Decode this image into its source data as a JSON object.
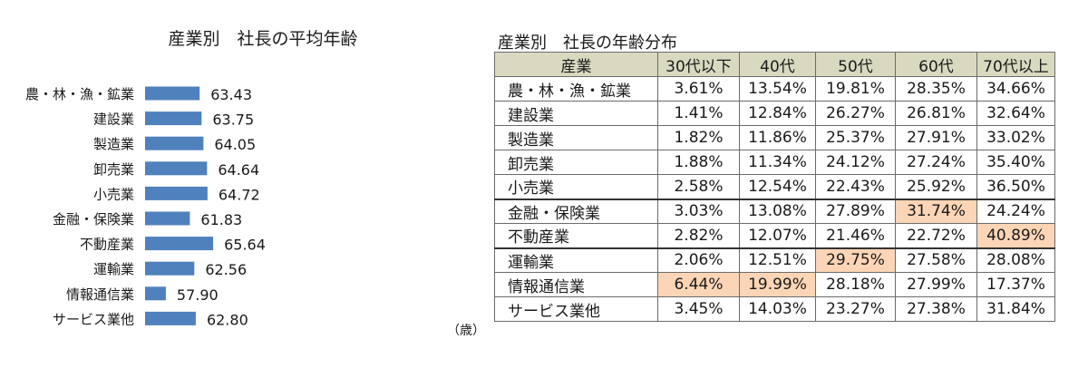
{
  "chart_data": [
    {
      "type": "bar",
      "orientation": "horizontal",
      "title": "産業別　社長の平均年齢",
      "categories": [
        "農・林・漁・鉱業",
        "建設業",
        "製造業",
        "卸売業",
        "小売業",
        "金融・保険業",
        "不動産業",
        "運輸業",
        "情報通信業",
        "サービス業他"
      ],
      "values": [
        63.43,
        63.75,
        64.05,
        64.64,
        64.72,
        61.83,
        65.64,
        62.56,
        57.9,
        62.8
      ],
      "value_labels": [
        "63.43",
        "63.75",
        "64.05",
        "64.64",
        "64.72",
        "61.83",
        "65.64",
        "62.56",
        "57.90",
        "62.80"
      ],
      "unit": "（歳）",
      "bar_color": "#4f81bd"
    },
    {
      "type": "table",
      "title": "産業別　社長の年齢分布",
      "columns": [
        "産業",
        "30代以下",
        "40代",
        "50代",
        "60代",
        "70代以上"
      ],
      "rows": [
        {
          "industry": "農・林・漁・鉱業",
          "values": [
            "3.61%",
            "13.54%",
            "19.81%",
            "28.35%",
            "34.66%"
          ]
        },
        {
          "industry": "建設業",
          "values": [
            "1.41%",
            "12.84%",
            "26.27%",
            "26.81%",
            "32.64%"
          ]
        },
        {
          "industry": "製造業",
          "values": [
            "1.82%",
            "11.86%",
            "25.37%",
            "27.91%",
            "33.02%"
          ]
        },
        {
          "industry": "卸売業",
          "values": [
            "1.88%",
            "11.34%",
            "24.12%",
            "27.24%",
            "35.40%"
          ]
        },
        {
          "industry": "小売業",
          "values": [
            "2.58%",
            "12.54%",
            "22.43%",
            "25.92%",
            "36.50%"
          ]
        },
        {
          "industry": "金融・保険業",
          "values": [
            "3.03%",
            "13.08%",
            "27.89%",
            "31.74%",
            "24.24%"
          ]
        },
        {
          "industry": "不動産業",
          "values": [
            "2.82%",
            "12.07%",
            "21.46%",
            "22.72%",
            "40.89%"
          ]
        },
        {
          "industry": "運輸業",
          "values": [
            "2.06%",
            "12.51%",
            "29.75%",
            "27.58%",
            "28.08%"
          ]
        },
        {
          "industry": "情報通信業",
          "values": [
            "6.44%",
            "19.99%",
            "28.18%",
            "27.99%",
            "17.37%"
          ]
        },
        {
          "industry": "サービス業他",
          "values": [
            "3.45%",
            "14.03%",
            "23.27%",
            "27.38%",
            "31.84%"
          ]
        }
      ],
      "highlighted_cells": [
        [
          5,
          3
        ],
        [
          6,
          4
        ],
        [
          7,
          2
        ],
        [
          8,
          0
        ],
        [
          8,
          1
        ]
      ],
      "highlight_color": "#fbd5b5",
      "header_color": "#d9d9c0"
    }
  ]
}
